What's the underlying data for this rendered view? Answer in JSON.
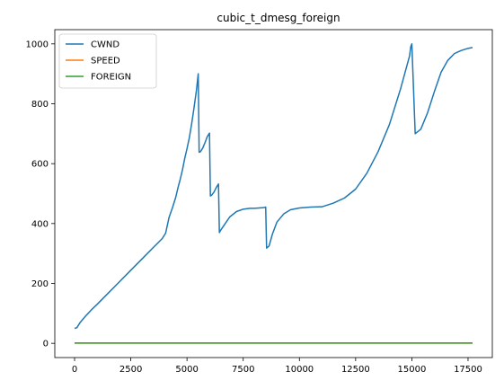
{
  "chart_data": {
    "type": "line",
    "title": "cubic_t_dmesg_foreign",
    "xlabel": "",
    "ylabel": "",
    "xlim": [
      -880,
      18580
    ],
    "ylim": [
      -47.5,
      1047.5
    ],
    "xticks": [
      0,
      2500,
      5000,
      7500,
      10000,
      12500,
      15000,
      17500
    ],
    "yticks": [
      0,
      200,
      400,
      600,
      800,
      1000
    ],
    "grid": false,
    "legend_position": "top-left",
    "series": [
      {
        "name": "CWND",
        "color": "#1f77b4",
        "x": [
          0,
          100,
          250,
          500,
          750,
          1000,
          1500,
          2000,
          2500,
          3000,
          3500,
          3900,
          4050,
          4200,
          4350,
          4500,
          4600,
          4700,
          4800,
          4900,
          5000,
          5100,
          5200,
          5300,
          5420,
          5500,
          5540,
          5600,
          5700,
          5800,
          5900,
          6000,
          6040,
          6100,
          6200,
          6300,
          6400,
          6440,
          6500,
          6700,
          6900,
          7200,
          7500,
          7800,
          8000,
          8400,
          8500,
          8540,
          8650,
          8800,
          9000,
          9300,
          9600,
          10000,
          10500,
          11000,
          11500,
          12000,
          12500,
          13000,
          13500,
          14000,
          14500,
          14900,
          14950,
          15000,
          15150,
          15400,
          15700,
          16000,
          16300,
          16600,
          16900,
          17200,
          17500,
          17700
        ],
        "values": [
          50,
          52,
          70,
          92,
          112,
          130,
          168,
          206,
          244,
          282,
          320,
          350,
          368,
          420,
          452,
          488,
          520,
          548,
          580,
          618,
          650,
          685,
          730,
          780,
          845,
          900,
          638,
          640,
          652,
          670,
          690,
          702,
          492,
          495,
          505,
          520,
          532,
          370,
          378,
          400,
          422,
          440,
          448,
          451,
          451,
          453,
          455,
          318,
          325,
          365,
          405,
          432,
          446,
          452,
          455,
          456,
          468,
          485,
          515,
          568,
          640,
          730,
          850,
          960,
          990,
          1000,
          700,
          715,
          770,
          840,
          905,
          945,
          968,
          978,
          985,
          988
        ]
      },
      {
        "name": "SPEED",
        "color": "#ff7f0e",
        "x": [
          0,
          17700
        ],
        "values": [
          1,
          1
        ]
      },
      {
        "name": "FOREIGN",
        "color": "#2ca02c",
        "x": [
          0,
          17700
        ],
        "values": [
          1,
          1
        ]
      }
    ]
  }
}
